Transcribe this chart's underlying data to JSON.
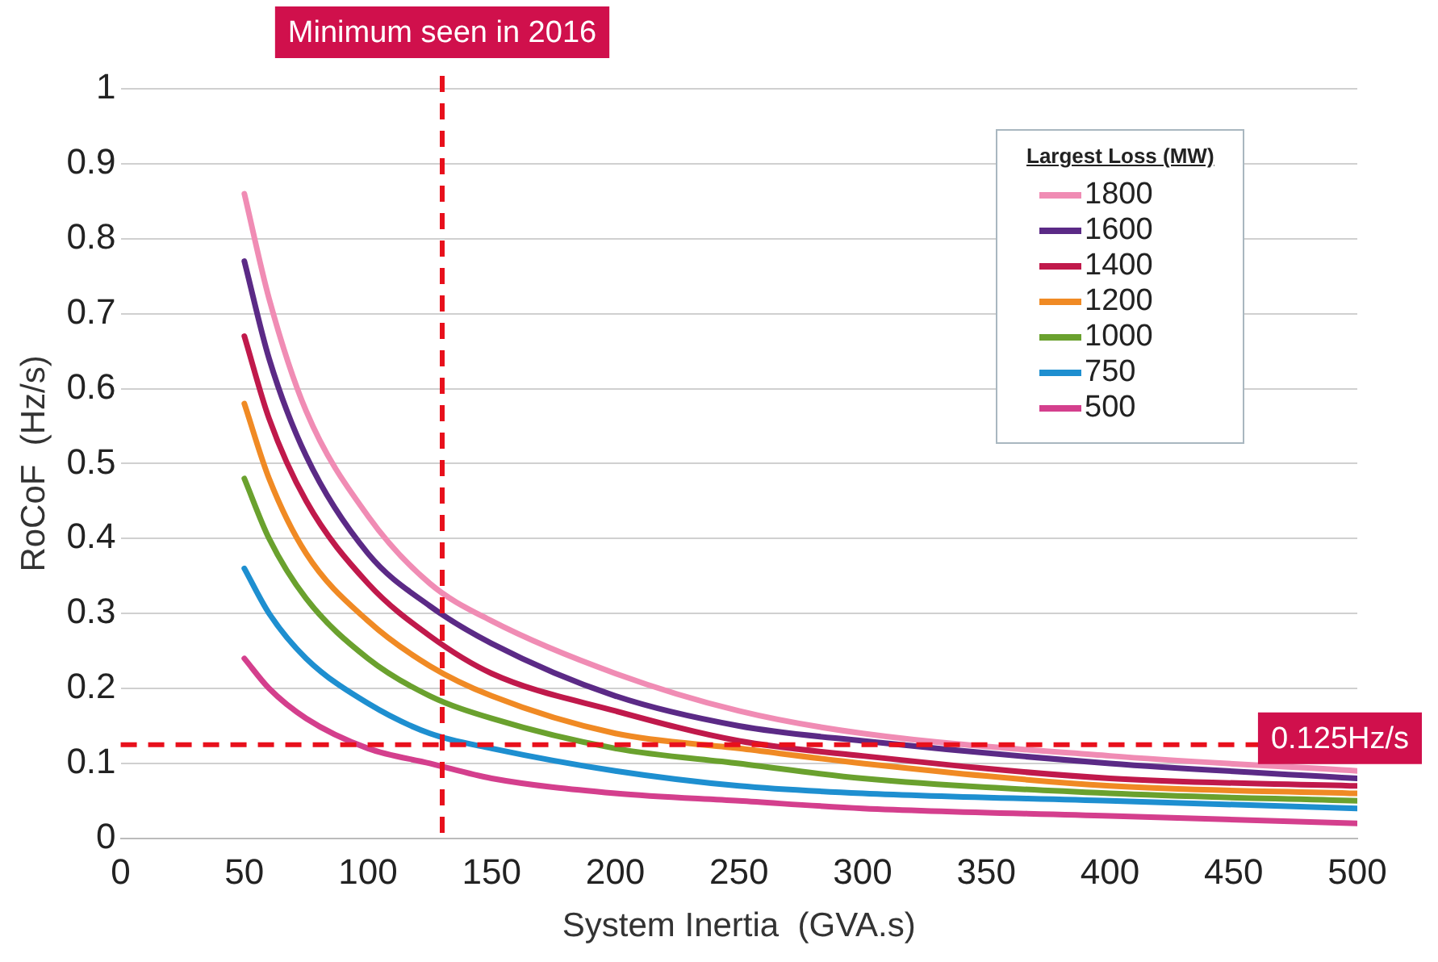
{
  "chart_data": {
    "type": "line",
    "xlabel": "System Inertia  (GVA.s)",
    "ylabel": "RoCoF  (Hz/s)",
    "legend_title": "Largest Loss (MW)",
    "x": [
      50,
      60,
      75,
      100,
      125,
      150,
      200,
      250,
      300,
      400,
      500
    ],
    "series": [
      {
        "name": "1800",
        "color": "#f08cb4",
        "values": [
          0.86,
          0.72,
          0.57,
          0.43,
          0.34,
          0.29,
          0.22,
          0.17,
          0.14,
          0.11,
          0.09
        ]
      },
      {
        "name": "1600",
        "color": "#5b2a86",
        "values": [
          0.77,
          0.64,
          0.51,
          0.38,
          0.31,
          0.26,
          0.19,
          0.15,
          0.13,
          0.1,
          0.08
        ]
      },
      {
        "name": "1400",
        "color": "#c0194b",
        "values": [
          0.67,
          0.56,
          0.45,
          0.34,
          0.27,
          0.22,
          0.17,
          0.13,
          0.11,
          0.08,
          0.07
        ]
      },
      {
        "name": "1200",
        "color": "#f08a24",
        "values": [
          0.58,
          0.48,
          0.38,
          0.29,
          0.23,
          0.19,
          0.14,
          0.12,
          0.1,
          0.07,
          0.06
        ]
      },
      {
        "name": "1000",
        "color": "#6aa12e",
        "values": [
          0.48,
          0.4,
          0.32,
          0.24,
          0.19,
          0.16,
          0.12,
          0.1,
          0.08,
          0.06,
          0.05
        ]
      },
      {
        "name": "750",
        "color": "#1e8fd0",
        "values": [
          0.36,
          0.3,
          0.24,
          0.18,
          0.14,
          0.12,
          0.09,
          0.07,
          0.06,
          0.05,
          0.04
        ]
      },
      {
        "name": "500",
        "color": "#d43f8d",
        "values": [
          0.24,
          0.2,
          0.16,
          0.12,
          0.1,
          0.08,
          0.06,
          0.05,
          0.04,
          0.03,
          0.02
        ]
      }
    ],
    "xlim": [
      0,
      500
    ],
    "xticks": [
      0,
      50,
      100,
      150,
      200,
      250,
      300,
      350,
      400,
      450,
      500
    ],
    "ylim": [
      0,
      1
    ],
    "yticks": [
      0,
      0.1,
      0.2,
      0.3,
      0.4,
      0.5,
      0.6,
      0.7,
      0.8,
      0.9,
      1
    ],
    "ref_lines": [
      {
        "axis": "x",
        "value": 130,
        "label": "Minimum seen in 2016",
        "color": "#e8101c",
        "line_style": "dashed"
      },
      {
        "axis": "y",
        "value": 0.125,
        "label": "0.125Hz/s",
        "color": "#e8101c",
        "line_style": "dashed"
      }
    ],
    "grid": "y",
    "legend": "top right",
    "marker": "none",
    "line_style": "solid"
  }
}
